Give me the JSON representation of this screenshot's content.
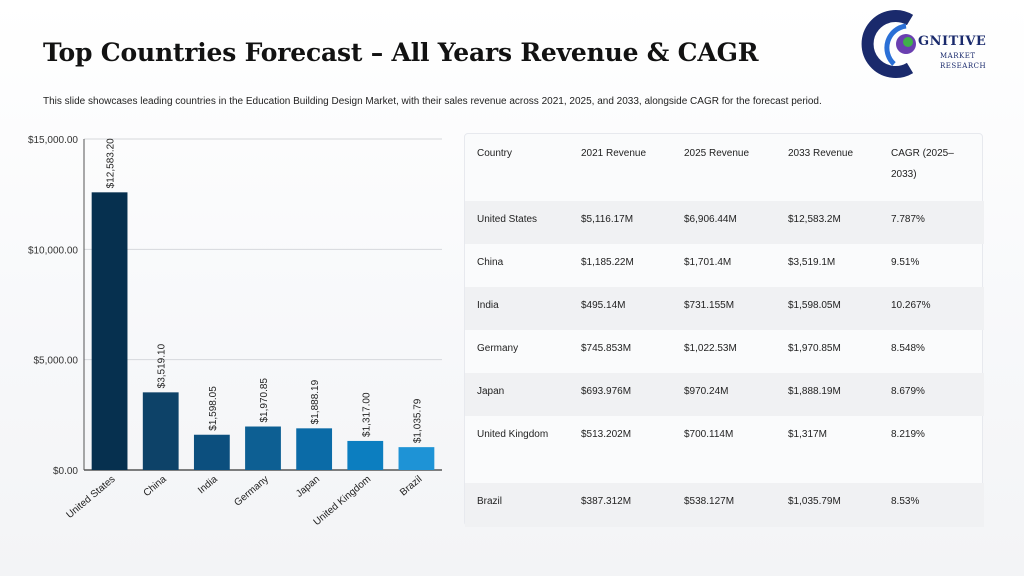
{
  "header": {
    "title": "Top Countries Forecast – All Years Revenue & CAGR",
    "subtitle": "This slide showcases leading countries in the Education Building Design Market, with their sales revenue across 2021, 2025, and 2033, alongside CAGR for the forecast period."
  },
  "logo": {
    "main_text": "GNITIVE",
    "line1": "MARKET",
    "line2": "RESEARCH",
    "colors": [
      "#1a2a6c",
      "#2a6fd6",
      "#6a3fb0",
      "#3fb04a"
    ]
  },
  "chart_data": {
    "type": "bar",
    "categories": [
      "United States",
      "China",
      "India",
      "Germany",
      "Japan",
      "United Kingdom",
      "Brazil"
    ],
    "values": [
      12583.2,
      3519.1,
      1598.05,
      1970.85,
      1888.19,
      1317.0,
      1035.79
    ],
    "data_labels": [
      "$12,583.20",
      "$3,519.10",
      "$1,598.05",
      "$1,970.85",
      "$1,888.19",
      "$1,317.00",
      "$1,035.79"
    ],
    "colors": [
      "#06304f",
      "#0d4268",
      "#0c4f7e",
      "#0d5f93",
      "#0b6ba7",
      "#0c7ec0",
      "#1e93d6"
    ],
    "yticks": [
      0,
      5000,
      10000,
      15000
    ],
    "ytick_labels": [
      "$0.00",
      "$5,000.00",
      "$10,000.00",
      "$15,000.00"
    ],
    "ylim": [
      0,
      15000
    ],
    "grid": true,
    "title": "",
    "xlabel": "",
    "ylabel": ""
  },
  "table": {
    "headers": [
      "Country",
      "2021 Revenue",
      "2025 Revenue",
      "2033 Revenue",
      "CAGR (2025–2033)"
    ],
    "rows": [
      [
        "United States",
        "$5,116.17M",
        "$6,906.44M",
        "$12,583.2M",
        "7.787%"
      ],
      [
        "China",
        "$1,185.22M",
        "$1,701.4M",
        "$3,519.1M",
        "9.51%"
      ],
      [
        "India",
        "$495.14M",
        "$731.155M",
        "$1,598.05M",
        "10.267%"
      ],
      [
        "Germany",
        "$745.853M",
        "$1,022.53M",
        "$1,970.85M",
        "8.548%"
      ],
      [
        "Japan",
        "$693.976M",
        "$970.24M",
        "$1,888.19M",
        "8.679%"
      ],
      [
        "United Kingdom",
        "$513.202M",
        "$700.114M",
        "$1,317M",
        "8.219%"
      ],
      [
        "Brazil",
        "$387.312M",
        "$538.127M",
        "$1,035.79M",
        "8.53%"
      ]
    ]
  }
}
